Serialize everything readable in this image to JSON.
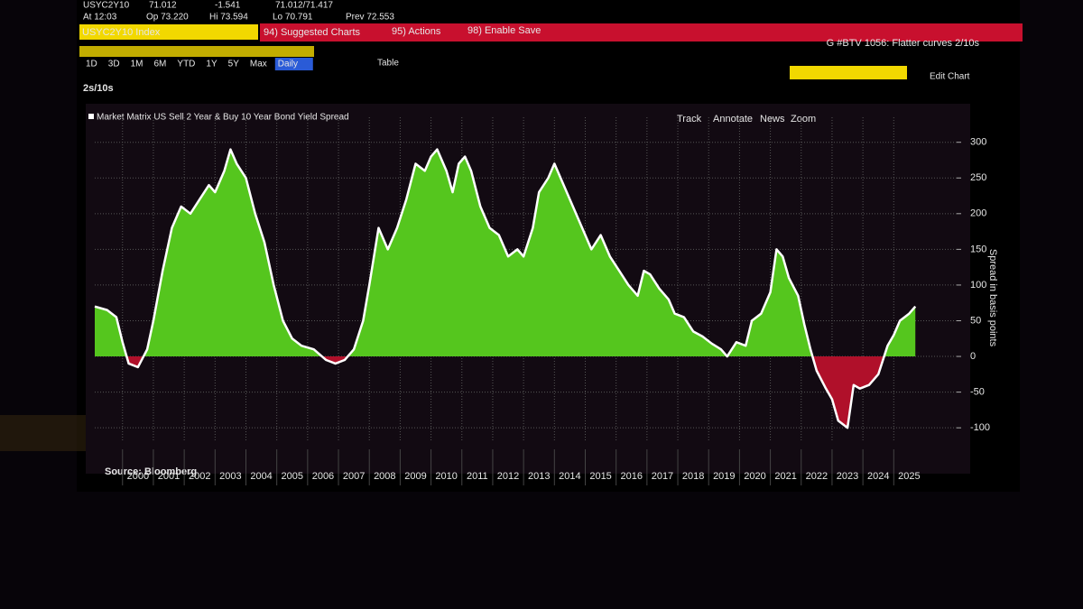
{
  "terminal": {
    "ticker": "USYC2Y10",
    "last": "71.012",
    "change": "-1.541",
    "bid_ask": "71.012/71.417",
    "time": "At 12:03",
    "open": "Op 73.220",
    "high": "Hi 73.594",
    "low": "Lo 70.791",
    "prev": "Prev 72.553",
    "security": "USYC2Y10 Index",
    "menu": [
      "94) Suggested Charts",
      "95) Actions",
      "98) Enable Save"
    ],
    "headline": "G #BTV 1056: Flatter curves 2/10s",
    "periods": [
      "1D",
      "3D",
      "1M",
      "6M",
      "YTD",
      "1Y",
      "5Y",
      "Max"
    ],
    "frequency": "Daily",
    "table": "Table",
    "edit": "Edit Chart",
    "tools": [
      "Track",
      "Annotate",
      "News",
      "Zoom"
    ],
    "source": "Source: Bloomberg"
  },
  "chart_data": {
    "type": "area",
    "title": "2s/10s",
    "series": [
      {
        "name": "Market Matrix US Sell 2 Year & Buy 10 Year Bond Yield Spread",
        "color": "#ffffff",
        "positive_color": "#55c61e",
        "negative_color": "#b0102a",
        "x": [
          1999.1,
          1999.5,
          1999.8,
          2000.0,
          2000.2,
          2000.5,
          2000.8,
          2001.0,
          2001.3,
          2001.6,
          2001.9,
          2002.2,
          2002.5,
          2002.8,
          2003.0,
          2003.3,
          2003.5,
          2003.7,
          2004.0,
          2004.3,
          2004.6,
          2004.9,
          2005.2,
          2005.5,
          2005.8,
          2006.2,
          2006.6,
          2006.9,
          2007.2,
          2007.5,
          2007.8,
          2008.0,
          2008.3,
          2008.6,
          2008.9,
          2009.2,
          2009.5,
          2009.8,
          2010.0,
          2010.2,
          2010.5,
          2010.7,
          2010.9,
          2011.1,
          2011.3,
          2011.6,
          2011.9,
          2012.2,
          2012.5,
          2012.8,
          2013.0,
          2013.3,
          2013.5,
          2013.8,
          2014.0,
          2014.3,
          2014.6,
          2014.9,
          2015.2,
          2015.5,
          2015.8,
          2016.1,
          2016.4,
          2016.7,
          2016.9,
          2017.1,
          2017.4,
          2017.7,
          2017.9,
          2018.2,
          2018.5,
          2018.8,
          2019.1,
          2019.4,
          2019.6,
          2019.9,
          2020.2,
          2020.4,
          2020.7,
          2021.0,
          2021.2,
          2021.4,
          2021.6,
          2021.9,
          2022.1,
          2022.3,
          2022.5,
          2022.8,
          2023.0,
          2023.2,
          2023.5,
          2023.7,
          2023.9,
          2024.2,
          2024.5,
          2024.8,
          2025.0,
          2025.2,
          2025.5,
          2025.7
        ],
        "values": [
          70,
          65,
          55,
          20,
          -10,
          -15,
          10,
          50,
          120,
          180,
          210,
          200,
          220,
          240,
          230,
          260,
          290,
          270,
          250,
          200,
          160,
          100,
          50,
          25,
          15,
          10,
          -5,
          -10,
          -5,
          10,
          50,
          100,
          180,
          150,
          180,
          220,
          270,
          260,
          280,
          290,
          260,
          230,
          270,
          280,
          260,
          210,
          180,
          170,
          140,
          150,
          140,
          180,
          230,
          250,
          270,
          240,
          210,
          180,
          150,
          170,
          140,
          120,
          100,
          85,
          120,
          115,
          95,
          80,
          60,
          55,
          35,
          28,
          18,
          10,
          0,
          20,
          15,
          50,
          60,
          90,
          150,
          140,
          110,
          85,
          45,
          10,
          -20,
          -45,
          -60,
          -90,
          -100,
          -40,
          -45,
          -40,
          -25,
          15,
          30,
          50,
          60,
          70
        ]
      }
    ],
    "xlim": [
      1999.1,
      2026.6
    ],
    "xticks": [
      2000,
      2001,
      2002,
      2003,
      2004,
      2005,
      2006,
      2007,
      2008,
      2009,
      2010,
      2011,
      2012,
      2013,
      2014,
      2015,
      2016,
      2017,
      2018,
      2019,
      2020,
      2021,
      2022,
      2023,
      2024,
      2025
    ],
    "ylim": [
      -120,
      335
    ],
    "yticks": [
      -100,
      -50,
      0,
      50,
      100,
      150,
      200,
      250,
      300
    ],
    "ylabel": "Spread in basis points",
    "grid": true
  }
}
